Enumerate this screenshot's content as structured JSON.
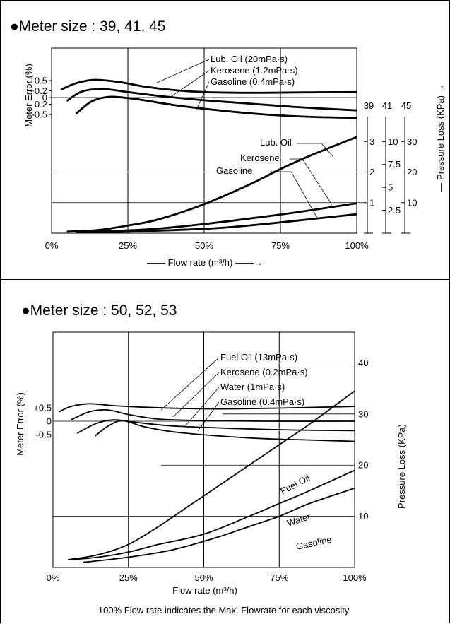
{
  "chart_data": [
    {
      "type": "line",
      "title": "●Meter size : 39, 41, 45",
      "xlabel": "—— Flow rate (m³/h) ——→",
      "x_ticks": [
        "0%",
        "25%",
        "50%",
        "75%",
        "100%"
      ],
      "xlim": [
        0,
        100
      ],
      "y_left_label": "Meter Error (%)",
      "y_left_ticks": [
        "+0.5",
        "+0.2",
        "0",
        "-0.2",
        "-0.5"
      ],
      "y_right_label": "— Pressure Loss (KPa) →",
      "right_axes": [
        {
          "header": "39",
          "ticks": [
            "3",
            "2",
            "1"
          ]
        },
        {
          "header": "41",
          "ticks": [
            "10",
            "7.5",
            "5",
            "2.5"
          ]
        },
        {
          "header": "45",
          "ticks": [
            "30",
            "20",
            "10"
          ]
        }
      ],
      "error_series": [
        {
          "name": "Lub. Oil (20mPa·s)",
          "x": [
            3,
            8,
            14,
            22,
            30,
            40,
            50,
            65,
            80,
            100
          ],
          "y": [
            0.23,
            0.42,
            0.52,
            0.46,
            0.33,
            0.22,
            0.16,
            0.14,
            0.15,
            0.16
          ]
        },
        {
          "name": "Kerosene (1.2mPa·s)",
          "x": [
            5,
            10,
            17,
            25,
            35,
            50,
            65,
            80,
            100
          ],
          "y": [
            -0.1,
            0.18,
            0.25,
            0.16,
            0.05,
            -0.08,
            -0.18,
            -0.28,
            -0.38
          ]
        },
        {
          "name": "Gasoline (0.4mPa·s)",
          "x": [
            8,
            13,
            19,
            28,
            40,
            55,
            70,
            85,
            100
          ],
          "y": [
            -0.48,
            -0.12,
            0.02,
            -0.05,
            -0.22,
            -0.38,
            -0.5,
            -0.57,
            -0.6
          ]
        }
      ],
      "loss_series": [
        {
          "name": "Lub. Oil",
          "x": [
            5,
            15,
            25,
            35,
            50,
            65,
            75,
            85,
            100
          ],
          "y": [
            0.05,
            0.1,
            0.25,
            0.45,
            0.95,
            1.6,
            2.1,
            2.55,
            3.15
          ]
        },
        {
          "name": "Kerosene",
          "x": [
            8,
            20,
            35,
            50,
            65,
            80,
            100
          ],
          "y": [
            0.03,
            0.07,
            0.15,
            0.3,
            0.48,
            0.68,
            0.98
          ]
        },
        {
          "name": "Gasoline",
          "x": [
            10,
            25,
            40,
            55,
            70,
            85,
            100
          ],
          "y": [
            0.02,
            0.05,
            0.1,
            0.17,
            0.3,
            0.46,
            0.62
          ]
        }
      ],
      "loss_ylim": [
        0,
        3.4
      ],
      "error_ylim": [
        -0.7,
        0.7
      ]
    },
    {
      "type": "line",
      "title": "●Meter size : 50, 52, 53",
      "xlabel": "Flow rate (m³/h)",
      "x_ticks": [
        "0%",
        "25%",
        "50%",
        "75%",
        "100%"
      ],
      "xlim": [
        0,
        100
      ],
      "y_left_label": "Meter Error (%)",
      "y_left_ticks": [
        "+0.5",
        "0",
        "-0.5"
      ],
      "y_right_label": "Pressure Loss (KPa)",
      "y_right_ticks": [
        "40",
        "30",
        "20",
        "10"
      ],
      "error_series": [
        {
          "name": "Fuel Oil (13mPa·s)",
          "x": [
            2,
            6,
            12,
            20,
            30,
            45,
            60,
            80,
            100
          ],
          "y": [
            0.35,
            0.55,
            0.65,
            0.58,
            0.52,
            0.47,
            0.46,
            0.5,
            0.55
          ]
        },
        {
          "name": "Kerosene (0.2mPa·s)",
          "x": [
            6,
            12,
            18,
            25,
            35,
            50,
            70,
            100
          ],
          "y": [
            0.05,
            0.35,
            0.42,
            0.25,
            0.08,
            0.02,
            0.0,
            0.0
          ]
        },
        {
          "name": "Water (1mPa·s)",
          "x": [
            8,
            14,
            20,
            28,
            40,
            60,
            80,
            100
          ],
          "y": [
            -0.45,
            -0.1,
            0.05,
            -0.05,
            -0.18,
            -0.27,
            -0.33,
            -0.35
          ]
        },
        {
          "name": "Gasoline (0.4mPa·s)",
          "x": [
            14,
            18,
            23,
            30,
            40,
            55,
            70,
            85,
            100
          ],
          "y": [
            -0.55,
            -0.2,
            0.02,
            -0.2,
            -0.4,
            -0.55,
            -0.65,
            -0.7,
            -0.75
          ]
        }
      ],
      "loss_series": [
        {
          "name": "Fuel Oil",
          "x": [
            5,
            15,
            25,
            35,
            45,
            55,
            65,
            75,
            85,
            100
          ],
          "y": [
            1.5,
            2.5,
            4.5,
            8,
            12,
            16,
            20,
            24,
            28,
            34.5
          ]
        },
        {
          "name": "Water",
          "x": [
            5,
            15,
            25,
            35,
            50,
            65,
            75,
            85,
            100
          ],
          "y": [
            1.5,
            2,
            3,
            4.5,
            6.5,
            10,
            12.5,
            15,
            19
          ]
        },
        {
          "name": "Gasoline",
          "x": [
            10,
            25,
            40,
            55,
            65,
            75,
            85,
            100
          ],
          "y": [
            1,
            2,
            3.5,
            6,
            8,
            10,
            12.5,
            15.5
          ]
        }
      ],
      "loss_ylim": [
        0,
        46
      ],
      "error_ylim": [
        -0.7,
        0.9
      ]
    }
  ],
  "footnote": "100% Flow rate indicates the Max. Flowrate for each viscosity."
}
